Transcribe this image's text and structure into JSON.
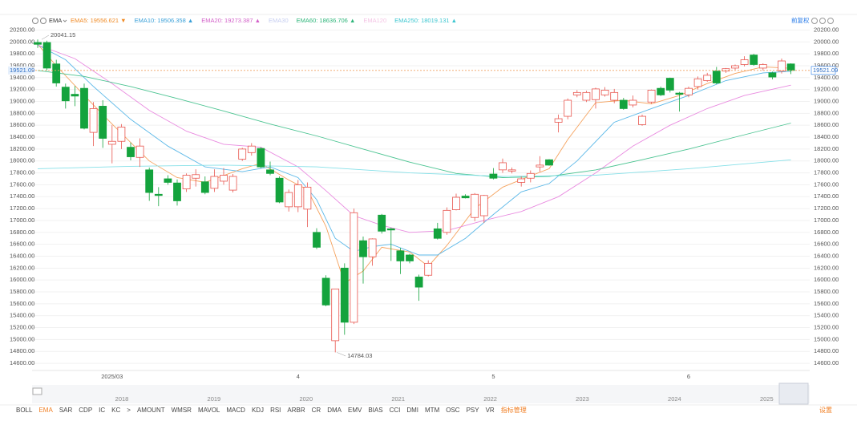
{
  "chart_data": {
    "type": "candlestick",
    "indicator": "EMA",
    "adjust": "前复权",
    "categories": [
      null,
      null,
      null,
      null,
      null,
      null,
      null,
      null,
      "2025/03",
      null,
      null,
      null,
      null,
      null,
      null,
      null,
      null,
      null,
      null,
      null,
      null,
      null,
      null,
      null,
      null,
      null,
      null,
      null,
      "4",
      null,
      null,
      null,
      null,
      null,
      null,
      null,
      null,
      null,
      null,
      null,
      null,
      null,
      null,
      null,
      null,
      null,
      null,
      null,
      null,
      "5",
      null,
      null,
      null,
      null,
      null,
      null,
      null,
      null,
      null,
      null,
      null,
      null,
      null,
      null,
      null,
      null,
      null,
      null,
      null,
      null,
      "6",
      null,
      null,
      null,
      null,
      null,
      null,
      null,
      null,
      null,
      null,
      null
    ],
    "open": [
      19990,
      19990,
      19630,
      19240,
      19120,
      19220,
      18480,
      18920,
      18280,
      18330,
      18230,
      18060,
      17850,
      17440,
      17700,
      17630,
      17530,
      17710,
      17650,
      17540,
      17660,
      17510,
      18030,
      18140,
      18210,
      17850,
      17710,
      17230,
      17230,
      17190,
      16800,
      16030,
      14980,
      16200,
      15290,
      16660,
      16390,
      17090,
      16860,
      16490,
      16420,
      16050,
      16080,
      16860,
      16800,
      17180,
      17410,
      17050,
      17080,
      17780,
      17850,
      17830,
      17640,
      17710,
      17900,
      18020,
      18650,
      18750,
      19110,
      19020,
      19030,
      19110,
      19020,
      19020,
      18940,
      18610,
      18990,
      19220,
      19390,
      19140,
      19110,
      19250,
      19350,
      19510,
      19510,
      19560,
      19620,
      19780,
      19560,
      19480,
      19510,
      19630
    ],
    "high": [
      20041.15,
      20020,
      19700,
      19300,
      19260,
      19300,
      18990,
      19020,
      18600,
      18620,
      18310,
      18380,
      17890,
      17560,
      17760,
      17690,
      17790,
      17860,
      17740,
      17860,
      17880,
      17780,
      18220,
      18300,
      18230,
      17990,
      17740,
      17520,
      17680,
      17640,
      16870,
      16080,
      15850,
      16280,
      17200,
      16730,
      16700,
      17110,
      16880,
      16540,
      16440,
      16090,
      16330,
      16960,
      17220,
      17450,
      17440,
      17460,
      17430,
      17880,
      18040,
      17890,
      17740,
      17840,
      18080,
      18030,
      18780,
      19050,
      19190,
      19180,
      19230,
      19240,
      19210,
      19060,
      19100,
      18780,
      19200,
      19250,
      19400,
      19160,
      19250,
      19420,
      19480,
      19580,
      19560,
      19620,
      19760,
      19800,
      19640,
      19500,
      19720,
      19640
    ],
    "low": [
      19900,
      19520,
      19250,
      18880,
      18920,
      18530,
      18250,
      18220,
      17960,
      18200,
      18010,
      17900,
      17330,
      17240,
      17600,
      17250,
      17480,
      17570,
      17440,
      17480,
      17600,
      17470,
      18000,
      18090,
      17880,
      17760,
      17290,
      17150,
      17140,
      16890,
      16520,
      15560,
      14784.03,
      15080,
      15260,
      15940,
      16240,
      16780,
      16320,
      16100,
      16280,
      15650,
      16060,
      16680,
      16760,
      17170,
      17370,
      16990,
      16960,
      17690,
      17800,
      17790,
      17570,
      17640,
      17820,
      17920,
      18480,
      18700,
      19070,
      18990,
      18880,
      19080,
      18970,
      18860,
      18900,
      18590,
      18960,
      19090,
      19150,
      18830,
      19070,
      19200,
      19330,
      19290,
      19480,
      19530,
      19590,
      19600,
      19520,
      19370,
      19470,
      19460
    ],
    "close": [
      19960,
      19560,
      19310,
      19010,
      19090,
      18550,
      18880,
      18380,
      18330,
      18570,
      18070,
      18250,
      17470,
      17420,
      17640,
      17330,
      17760,
      17770,
      17470,
      17740,
      17760,
      17740,
      18200,
      18250,
      17900,
      17790,
      17310,
      17470,
      17600,
      17560,
      16550,
      15580,
      15850,
      15290,
      17130,
      16390,
      16690,
      16820,
      16840,
      16320,
      16320,
      15880,
      16280,
      16700,
      17170,
      17390,
      17380,
      17440,
      17420,
      17710,
      17970,
      17850,
      17700,
      17790,
      17930,
      17930,
      18710,
      19020,
      19150,
      19150,
      19210,
      19190,
      19150,
      18880,
      19020,
      18750,
      19190,
      19110,
      19190,
      19120,
      19220,
      19380,
      19440,
      19310,
      19550,
      19600,
      19700,
      19620,
      19620,
      19410,
      19680,
      19521.09
    ],
    "up_color": "#e8554e",
    "down_color": "#14a33d",
    "ylim": [
      14480,
      20300
    ],
    "yticks": [
      {
        "value": 14600,
        "label": "14600.00"
      },
      {
        "value": 14800,
        "label": "14800.00"
      },
      {
        "value": 15000,
        "label": "15000.00"
      },
      {
        "value": 15200,
        "label": "15200.00"
      },
      {
        "value": 15400,
        "label": "15400.00"
      },
      {
        "value": 15600,
        "label": "15600.00"
      },
      {
        "value": 15800,
        "label": "15800.00"
      },
      {
        "value": 16000,
        "label": "16000.00"
      },
      {
        "value": 16200,
        "label": "16200.00"
      },
      {
        "value": 16400,
        "label": "16400.00"
      },
      {
        "value": 16600,
        "label": "16600.00"
      },
      {
        "value": 16800,
        "label": "16800.00"
      },
      {
        "value": 17000,
        "label": "17000.00"
      },
      {
        "value": 17200,
        "label": "17200.00"
      },
      {
        "value": 17400,
        "label": "17400.00"
      },
      {
        "value": 17600,
        "label": "17600.00"
      },
      {
        "value": 17800,
        "label": "17800.00"
      },
      {
        "value": 18000,
        "label": "18000.00"
      },
      {
        "value": 18200,
        "label": "18200.00"
      },
      {
        "value": 18400,
        "label": "18400.00"
      },
      {
        "value": 18600,
        "label": "18600.00"
      },
      {
        "value": 18800,
        "label": "18800.00"
      },
      {
        "value": 19000,
        "label": "19000.00"
      },
      {
        "value": 19200,
        "label": "19200.00"
      },
      {
        "value": 19400,
        "label": "19400.00"
      },
      {
        "value": 19600,
        "label": "19600.00"
      },
      {
        "value": 19800,
        "label": "19800.00"
      },
      {
        "value": 20000,
        "label": "20000.00"
      },
      {
        "value": 20200,
        "label": "20200.00"
      }
    ],
    "grid": true,
    "legend": [
      {
        "text": "EMA5: 19556.621 ▼",
        "color": "#f08a24"
      },
      {
        "text": "EMA10: 19506.358 ▲",
        "color": "#3aa0d8"
      },
      {
        "text": "EMA20: 19273.387 ▲",
        "color": "#d25fc8"
      },
      {
        "text": "EMA30",
        "color": "#c5cdf0"
      },
      {
        "text": "EMA60: 18636.706 ▲",
        "color": "#2eb57a"
      },
      {
        "text": "EMA120",
        "color": "#f4c4e4"
      },
      {
        "text": "EMA250: 18019.131 ▲",
        "color": "#3cc6d0"
      }
    ],
    "ema": [
      {
        "color": "#f5a25d",
        "x": [
          0,
          2,
          5,
          8,
          12,
          15,
          18,
          22,
          24,
          27,
          29,
          31,
          33,
          35,
          37,
          40,
          42,
          44,
          47,
          50,
          53,
          55,
          57,
          60,
          63,
          66,
          69,
          72,
          75,
          78,
          81
        ],
        "values": [
          19960,
          19600,
          19100,
          18620,
          18000,
          17720,
          17640,
          17870,
          17960,
          17680,
          17520,
          16900,
          15950,
          16150,
          16550,
          16470,
          16230,
          16580,
          17200,
          17560,
          17750,
          17870,
          18360,
          18980,
          19020,
          18960,
          19100,
          19300,
          19470,
          19580,
          19556.621
        ]
      },
      {
        "color": "#5bb8e8",
        "x": [
          0,
          3,
          6,
          10,
          14,
          18,
          22,
          25,
          28,
          30,
          32,
          34,
          36,
          38,
          41,
          43,
          46,
          49,
          52,
          55,
          58,
          62,
          66,
          70,
          74,
          78,
          81
        ],
        "values": [
          19950,
          19700,
          19250,
          18700,
          18250,
          17900,
          17820,
          17900,
          17720,
          17350,
          16700,
          16480,
          16560,
          16600,
          16420,
          16420,
          16700,
          17100,
          17480,
          17620,
          18000,
          18650,
          18880,
          19100,
          19350,
          19480,
          19506.358
        ]
      },
      {
        "color": "#e98be0",
        "x": [
          0,
          4,
          8,
          12,
          16,
          20,
          24,
          28,
          31,
          34,
          37,
          40,
          44,
          48,
          52,
          56,
          60,
          64,
          68,
          72,
          76,
          81
        ],
        "values": [
          19950,
          19720,
          19300,
          18850,
          18500,
          18280,
          18230,
          17900,
          17500,
          17080,
          16920,
          16800,
          16830,
          17000,
          17150,
          17400,
          17800,
          18250,
          18600,
          18880,
          19100,
          19273.387
        ]
      },
      {
        "color": "#4cc492",
        "x": [
          0,
          5,
          10,
          15,
          20,
          25,
          30,
          35,
          40,
          45,
          50,
          55,
          60,
          65,
          70,
          75,
          81
        ],
        "values": [
          19520,
          19420,
          19250,
          19050,
          18840,
          18620,
          18420,
          18200,
          17980,
          17790,
          17720,
          17740,
          17850,
          18020,
          18200,
          18400,
          18636.706
        ]
      },
      {
        "color": "#86e0e8",
        "x": [
          0,
          10,
          20,
          30,
          40,
          50,
          60,
          70,
          81
        ],
        "values": [
          17870,
          17910,
          17930,
          17900,
          17800,
          17740,
          17760,
          17870,
          18019.131
        ]
      }
    ],
    "navigator_years": [
      "2018",
      "2019",
      "2020",
      "2021",
      "2022",
      "2023",
      "2024",
      "2025"
    ]
  },
  "indicator_tabs": [
    "BOLL",
    "EMA",
    "SAR",
    "CDP",
    "IC",
    "KC",
    ">",
    "AMOUNT",
    "WMSR",
    "MAVOL",
    "MACD",
    "KDJ",
    "RSI",
    "ARBR",
    "CR",
    "DMA",
    "EMV",
    "BIAS",
    "CCI",
    "DMI",
    "MTM",
    "OSC",
    "PSY",
    "VR",
    "指标管理"
  ],
  "active_tab": 1,
  "settings": "设置"
}
